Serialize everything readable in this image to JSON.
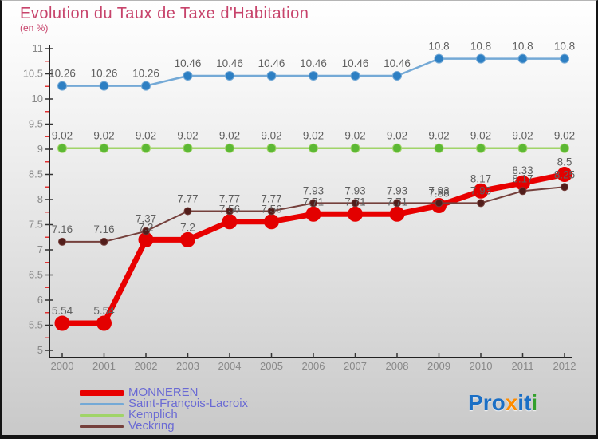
{
  "header": {
    "title": "Evolution du Taux de Taxe d'Habitation",
    "subtitle": "(en %)"
  },
  "chart_data": {
    "type": "line",
    "x": [
      2000,
      2001,
      2002,
      2003,
      2004,
      2005,
      2006,
      2007,
      2008,
      2009,
      2010,
      2011,
      2012
    ],
    "xticks": [
      "2000",
      "2001",
      "2002",
      "2003",
      "2004",
      "2005",
      "2006",
      "2007",
      "2008",
      "2009",
      "2010",
      "2011",
      "2012"
    ],
    "yticks": [
      "11",
      "10.5",
      "10",
      "9.5",
      "9",
      "8.5",
      "8",
      "7.5",
      "7",
      "6.5",
      "6",
      "5.5",
      "5"
    ],
    "ylim": [
      5,
      11
    ],
    "ymajor_step": 0.5,
    "yminor_step": 0.25,
    "grid": false,
    "legend_position": "bottom-left",
    "series": [
      {
        "name": "MONNEREN",
        "color": "#e80000",
        "point_color": "#e30000",
        "line_width": 7,
        "point_radius": 9,
        "values": [
          5.54,
          5.54,
          7.2,
          7.2,
          7.56,
          7.56,
          7.71,
          7.71,
          7.71,
          7.88,
          8.17,
          8.33,
          8.5
        ],
        "labels": [
          "5.54",
          "5.54",
          "7.2",
          "7.2",
          "7.56",
          "7.56",
          "7.71",
          "7.71",
          "7.71",
          "7.88",
          "8.17",
          "8.33",
          "8.5"
        ]
      },
      {
        "name": "Saint-François-Lacroix",
        "color": "#74a9d6",
        "point_color": "#2d7fc3",
        "line_width": 2.5,
        "point_radius": 5.5,
        "values": [
          10.26,
          10.26,
          10.26,
          10.46,
          10.46,
          10.46,
          10.46,
          10.46,
          10.46,
          10.8,
          10.8,
          10.8,
          10.8
        ],
        "labels": [
          "10.26",
          "10.26",
          "10.26",
          "10.46",
          "10.46",
          "10.46",
          "10.46",
          "10.46",
          "10.46",
          "10.8",
          "10.8",
          "10.8",
          "10.8"
        ]
      },
      {
        "name": "Kemplich",
        "color": "#a0d468",
        "point_color": "#5cb834",
        "line_width": 2.5,
        "point_radius": 5.5,
        "values": [
          9.02,
          9.02,
          9.02,
          9.02,
          9.02,
          9.02,
          9.02,
          9.02,
          9.02,
          9.02,
          9.02,
          9.02,
          9.02
        ],
        "labels": [
          "9.02",
          "9.02",
          "9.02",
          "9.02",
          "9.02",
          "9.02",
          "9.02",
          "9.02",
          "9.02",
          "9.02",
          "9.02",
          "9.02",
          "9.02"
        ]
      },
      {
        "name": "Veckring",
        "color": "#75403c",
        "point_color": "#521d1a",
        "line_width": 2,
        "point_radius": 4.5,
        "values": [
          7.16,
          7.16,
          7.37,
          7.77,
          7.77,
          7.77,
          7.93,
          7.93,
          7.93,
          7.93,
          7.93,
          8.17,
          8.25
        ],
        "labels": [
          "7.16",
          "7.16",
          "7.37",
          "7.77",
          "7.77",
          "7.77",
          "7.93",
          "7.93",
          "7.93",
          "7.93",
          "7.93",
          "8.17",
          "8.25"
        ]
      }
    ],
    "colors": {
      "axis": "#222222",
      "tick_label": "#888888",
      "minor_tick": "#e23333",
      "data_label": "#606060"
    }
  },
  "legend": {
    "swatch_heights": [
      7,
      3,
      3,
      3
    ]
  },
  "logo": {
    "word": "Proxiti",
    "letters": [
      {
        "ch": "P",
        "color": "#1b6fc5"
      },
      {
        "ch": "r",
        "color": "#1b6fc5"
      },
      {
        "ch": "o",
        "color": "#1b6fc5"
      },
      {
        "ch": "x",
        "color": "#ff8c00"
      },
      {
        "ch": "i",
        "color": "#1b6fc5"
      },
      {
        "ch": "t",
        "color": "#1b6fc5"
      },
      {
        "ch": "i",
        "color": "#33a02c"
      }
    ]
  }
}
